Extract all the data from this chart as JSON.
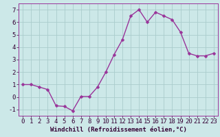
{
  "x": [
    0,
    1,
    2,
    3,
    4,
    5,
    6,
    7,
    8,
    9,
    10,
    11,
    12,
    13,
    14,
    15,
    16,
    17,
    18,
    19,
    20,
    21,
    22,
    23
  ],
  "y": [
    1.0,
    1.0,
    0.8,
    0.6,
    -0.7,
    -0.75,
    -1.1,
    0.05,
    0.05,
    0.8,
    2.0,
    3.4,
    4.6,
    6.5,
    7.0,
    6.0,
    6.8,
    6.5,
    6.2,
    5.2,
    3.5,
    3.3,
    3.3,
    3.5
  ],
  "line_color": "#993399",
  "marker_color": "#993399",
  "bg_color": "#cce8e8",
  "grid_color": "#aacccc",
  "xlabel": "Windchill (Refroidissement éolien,°C)",
  "xlim": [
    -0.5,
    23.5
  ],
  "ylim": [
    -1.5,
    7.5
  ],
  "yticks": [
    -1,
    0,
    1,
    2,
    3,
    4,
    5,
    6,
    7
  ],
  "xtick_labels": [
    "0",
    "1",
    "2",
    "3",
    "4",
    "5",
    "6",
    "7",
    "8",
    "9",
    "10",
    "11",
    "12",
    "13",
    "14",
    "15",
    "16",
    "17",
    "18",
    "19",
    "20",
    "21",
    "22",
    "23"
  ],
  "xlabel_fontsize": 6.5,
  "tick_fontsize": 6.5,
  "line_width": 1.0,
  "marker_size": 2.5
}
